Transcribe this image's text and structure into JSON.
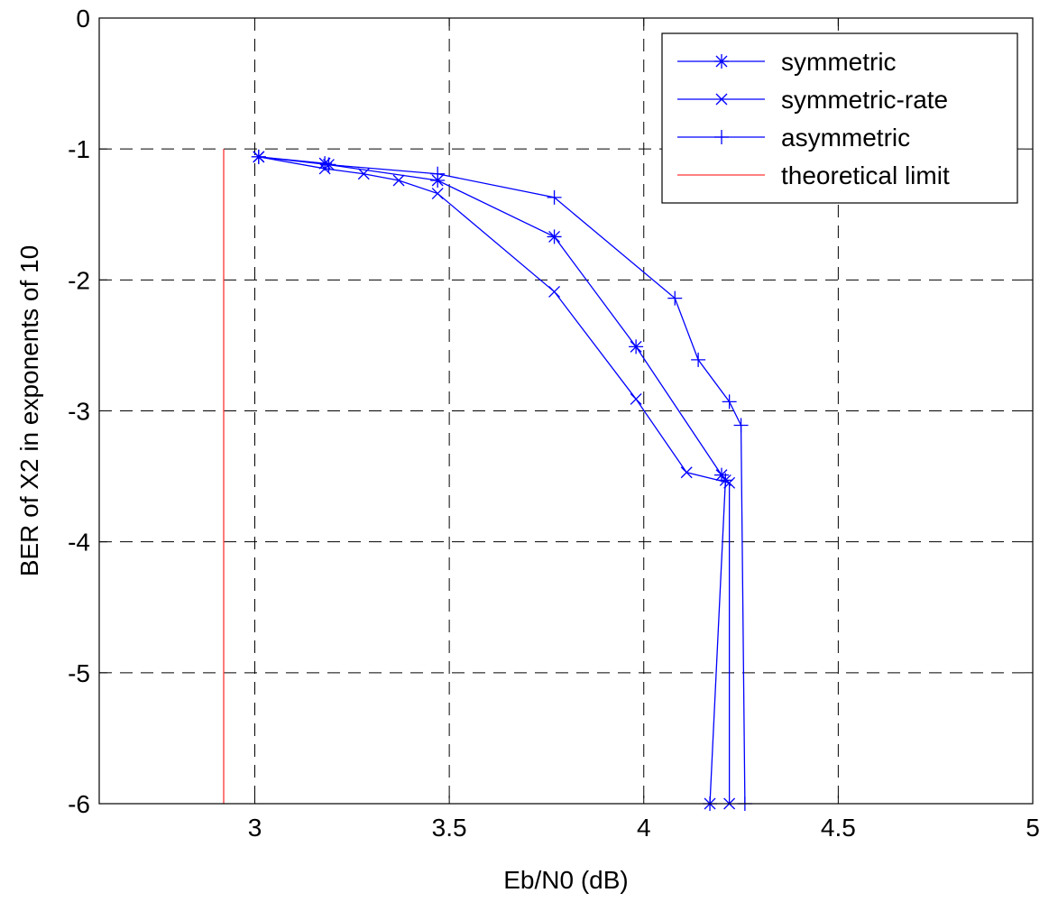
{
  "chart_data": {
    "type": "line",
    "xlabel": "Eb/N0 (dB)",
    "ylabel": "BER of X2 in exponents of 10",
    "xlim": [
      2.6,
      5
    ],
    "ylim": [
      -6,
      0
    ],
    "x_ticks": [
      3,
      3.5,
      4,
      4.5,
      5
    ],
    "x_tick_labels": [
      "3",
      "3.5",
      "4",
      "4.5",
      "5"
    ],
    "y_ticks": [
      0,
      -1,
      -2,
      -3,
      -4,
      -5,
      -6
    ],
    "y_tick_labels": [
      "0",
      "-1",
      "-2",
      "-3",
      "-4",
      "-5",
      "-6"
    ],
    "grid": true,
    "legend_position": "top-right",
    "series": [
      {
        "name": "symmetric",
        "marker": "asterisk",
        "color": "#0000ff",
        "x": [
          3.01,
          3.18,
          3.19,
          3.47,
          3.77,
          3.98,
          4.2,
          4.21,
          4.17
        ],
        "y": [
          -1.06,
          -1.11,
          -1.12,
          -1.24,
          -1.67,
          -2.51,
          -3.49,
          -3.53,
          -6.0
        ]
      },
      {
        "name": "symmetric-rate",
        "marker": "x",
        "color": "#0000ff",
        "x": [
          3.01,
          3.18,
          3.28,
          3.37,
          3.47,
          3.77,
          3.98,
          4.11,
          4.22,
          4.22
        ],
        "y": [
          -1.06,
          -1.15,
          -1.19,
          -1.24,
          -1.34,
          -2.09,
          -2.91,
          -3.47,
          -3.55,
          -6.0
        ]
      },
      {
        "name": "asymmetric",
        "marker": "plus",
        "color": "#0000ff",
        "x": [
          3.01,
          3.19,
          3.47,
          3.77,
          4.08,
          4.14,
          4.22,
          4.25,
          4.26
        ],
        "y": [
          -1.06,
          -1.12,
          -1.19,
          -1.37,
          -2.14,
          -2.61,
          -2.93,
          -3.11,
          -6.0
        ]
      },
      {
        "name": "theoretical limit",
        "marker": "none",
        "color": "#ff3333",
        "x": [
          2.92,
          2.92
        ],
        "y": [
          -1.0,
          -6.0
        ]
      }
    ]
  }
}
